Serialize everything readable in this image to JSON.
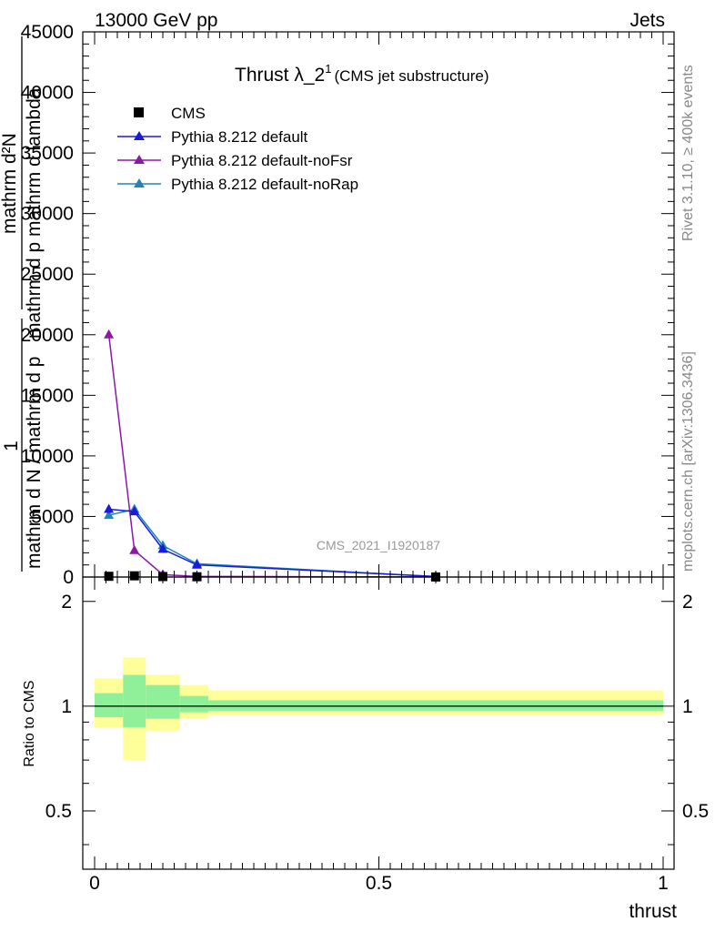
{
  "header": {
    "left": "13000 GeV pp",
    "right": "Jets"
  },
  "side_texts": {
    "rivet": "Rivet 3.1.10, ≥ 400k events",
    "mcplots": "mcplots.cern.ch [arXiv:1306.3436]"
  },
  "watermark": "CMS_2021_I1920187",
  "chart_data": [
    {
      "type": "line",
      "title": "Thrust λ_2",
      "title_sup": "1",
      "subtitle": "(CMS jet substructure)",
      "ylabel_lines": [
        "1",
        "mathrm d N / mathrm d p",
        "mathrm d²N",
        "mathrm d p mathrm d lambda"
      ],
      "ylabel_display": {
        "num1": "1",
        "den1": "mathrm d N / mathrm d p",
        "num2": "mathrm d²N",
        "den2": "mathrm d p mathrm d lambda"
      },
      "xlim": [
        0,
        1
      ],
      "ylim": [
        0,
        45000
      ],
      "yticks": [
        0,
        5000,
        10000,
        15000,
        20000,
        25000,
        30000,
        35000,
        40000,
        45000
      ],
      "ytick_labels": [
        "0",
        "5000",
        "10000",
        "15000",
        "20000",
        "25000",
        "30000",
        "35000",
        "40000",
        "45000"
      ],
      "legend_position": "top-left",
      "series": [
        {
          "name": "CMS",
          "color": "#000000",
          "marker": "square",
          "x": [
            0.025,
            0.07,
            0.12,
            0.18,
            0.6
          ],
          "y": [
            60,
            100,
            40,
            25,
            5
          ]
        },
        {
          "name": "Pythia 8.212 default",
          "color": "#1a1adf",
          "marker": "triangle",
          "x": [
            0.025,
            0.07,
            0.12,
            0.18,
            0.6
          ],
          "y": [
            5600,
            5400,
            2300,
            1000,
            50
          ]
        },
        {
          "name": "Pythia 8.212 default-noFsr",
          "color": "#8c18a8",
          "marker": "triangle",
          "x": [
            0.025,
            0.07,
            0.12,
            0.18,
            0.6
          ],
          "y": [
            20000,
            2200,
            200,
            50,
            5
          ]
        },
        {
          "name": "Pythia 8.212 default-noRap",
          "color": "#1f85b8",
          "marker": "triangle",
          "x": [
            0.025,
            0.07,
            0.12,
            0.18,
            0.6
          ],
          "y": [
            5100,
            5600,
            2600,
            1100,
            40
          ]
        }
      ]
    },
    {
      "type": "area",
      "ylabel": "Ratio to CMS",
      "xlabel": "thrust",
      "xlim": [
        0,
        1
      ],
      "ylim": [
        0.34,
        2.35
      ],
      "yscale": "log",
      "yticks": [
        0.5,
        1,
        2
      ],
      "ytick_labels": [
        "0.5",
        "1",
        "2"
      ],
      "xticks": [
        0,
        0.5,
        1
      ],
      "xtick_labels": [
        "0",
        "0.5",
        "1"
      ],
      "reference_line": 1,
      "bands": {
        "bin_edges": [
          0,
          0.05,
          0.09,
          0.15,
          0.2,
          1.0
        ],
        "outer_color": "#ffff99",
        "inner_color": "#90f09a",
        "outer_low": [
          0.87,
          0.7,
          0.85,
          0.92,
          0.94
        ],
        "outer_high": [
          1.2,
          1.38,
          1.23,
          1.15,
          1.11
        ],
        "inner_low": [
          0.93,
          0.87,
          0.92,
          0.96,
          0.97
        ],
        "inner_high": [
          1.09,
          1.23,
          1.15,
          1.07,
          1.04
        ]
      }
    }
  ]
}
